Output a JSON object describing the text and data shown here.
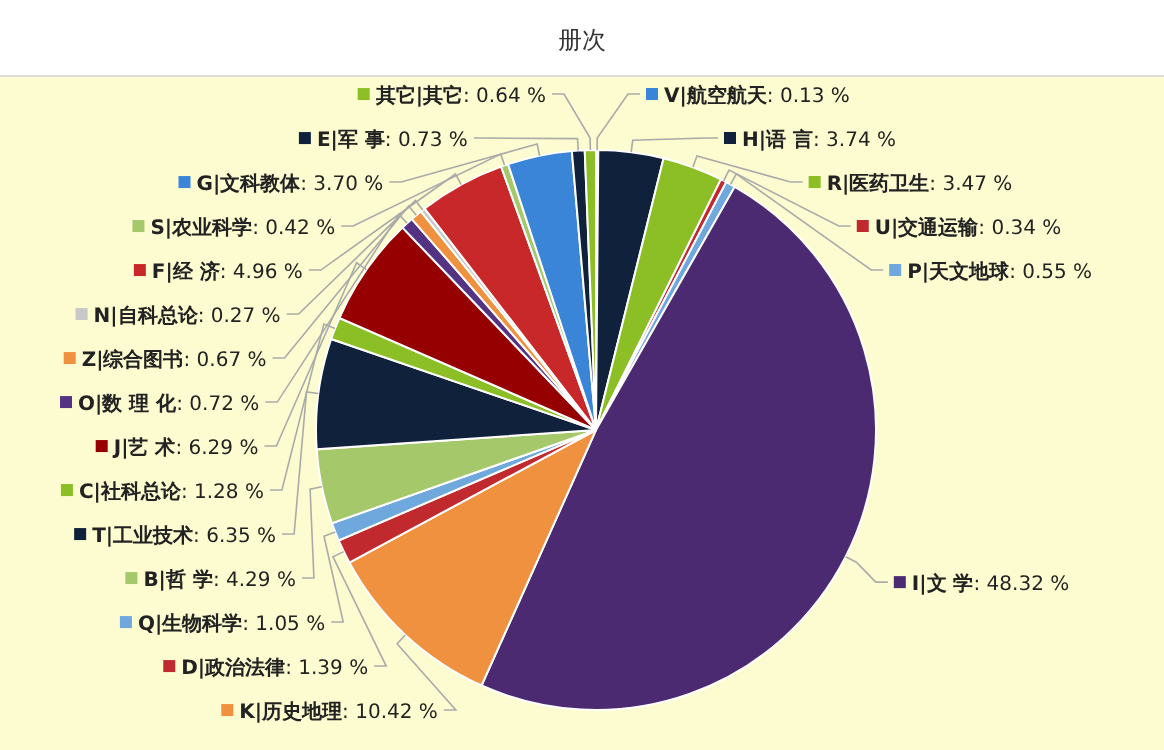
{
  "chart_data": {
    "type": "pie",
    "title": "册次",
    "categories": [
      "V|航空航天",
      "H|语 言",
      "R|医药卫生",
      "U|交通运输",
      "P|天文地球",
      "I|文 学",
      "K|历史地理",
      "D|政治法律",
      "Q|生物科学",
      "B|哲 学",
      "T|工业技术",
      "C|社科总论",
      "J|艺 术",
      "O|数 理 化",
      "Z|综合图书",
      "N|自科总论",
      "F|经 济",
      "S|农业科学",
      "G|文科教体",
      "E|军 事",
      "其它|其它"
    ],
    "values": [
      0.13,
      3.74,
      3.47,
      0.34,
      0.55,
      48.32,
      10.42,
      1.39,
      1.05,
      4.29,
      6.35,
      1.28,
      6.29,
      0.72,
      0.67,
      0.27,
      4.96,
      0.42,
      3.7,
      0.73,
      0.64
    ],
    "value_labels": [
      ": 0.13 %",
      ": 3.74 %",
      ": 3.47 %",
      ": 0.34 %",
      ": 0.55 %",
      ": 48.32 %",
      ": 10.42 %",
      ": 1.39 %",
      ": 1.05 %",
      ": 4.29 %",
      ": 6.35 %",
      ": 1.28 %",
      ": 6.29 %",
      ": 0.72 %",
      ": 0.67 %",
      ": 0.27 %",
      ": 4.96 %",
      ": 0.42 %",
      ": 3.70 %",
      ": 0.73 %",
      ": 0.64 %"
    ],
    "colors": [
      "#3a85d8",
      "#10223b",
      "#8cbf26",
      "#c0292e",
      "#6fa8dc",
      "#4b2a72",
      "#f0913f",
      "#c0292e",
      "#6fa8dc",
      "#a5c86a",
      "#10223b",
      "#8cbf26",
      "#960000",
      "#553383",
      "#f0913f",
      "#c8c8c8",
      "#c8282a",
      "#a5c86a",
      "#3a85d8",
      "#10223b",
      "#8cbf26"
    ],
    "legend": "top left"
  }
}
